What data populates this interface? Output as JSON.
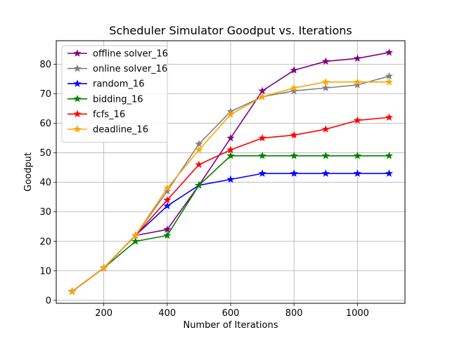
{
  "chart_data": {
    "type": "line",
    "title": "Scheduler Simulator Goodput vs. Iterations",
    "xlabel": "Number of Iterations",
    "ylabel": "Goodput",
    "xlim": [
      50,
      1150
    ],
    "ylim": [
      -1,
      88
    ],
    "xticks": [
      200,
      400,
      600,
      800,
      1000
    ],
    "yticks": [
      0,
      10,
      20,
      30,
      40,
      50,
      60,
      70,
      80
    ],
    "grid": true,
    "legend_position": "upper-left",
    "marker": "star",
    "x": [
      100,
      200,
      300,
      400,
      500,
      600,
      700,
      800,
      900,
      1000,
      1100
    ],
    "series": [
      {
        "name": "offline solver_16",
        "color": "#800080",
        "values": [
          3,
          11,
          22,
          24,
          39,
          55,
          71,
          78,
          81,
          82,
          84
        ]
      },
      {
        "name": "online solver_16",
        "color": "#808080",
        "values": [
          3,
          11,
          22,
          37,
          53,
          64,
          69,
          71,
          72,
          73,
          76
        ]
      },
      {
        "name": "random_16",
        "color": "#0000ff",
        "values": [
          3,
          11,
          22,
          32,
          39,
          41,
          43,
          43,
          43,
          43,
          43
        ]
      },
      {
        "name": "bidding_16",
        "color": "#008000",
        "values": [
          3,
          11,
          20,
          22,
          39,
          49,
          49,
          49,
          49,
          49,
          49
        ]
      },
      {
        "name": "fcfs_16",
        "color": "#ff0000",
        "values": [
          3,
          11,
          22,
          34,
          46,
          51,
          55,
          56,
          58,
          61,
          62
        ]
      },
      {
        "name": "deadline_16",
        "color": "#ffa500",
        "values": [
          3,
          11,
          22,
          38,
          51,
          63,
          69,
          72,
          74,
          74,
          74
        ]
      }
    ]
  }
}
